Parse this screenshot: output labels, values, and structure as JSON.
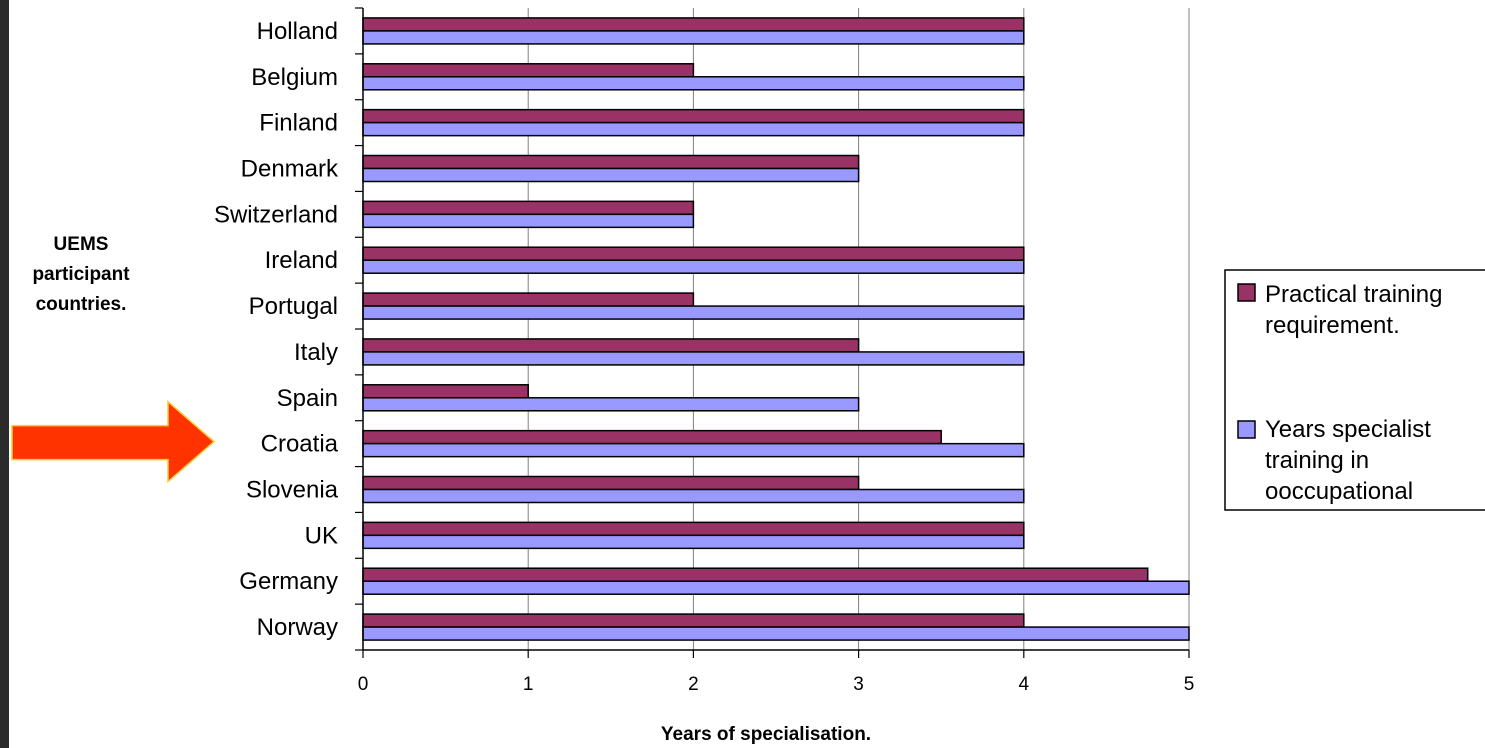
{
  "chart_data": {
    "type": "bar",
    "orientation": "horizontal",
    "categories": [
      "Holland",
      "Belgium",
      "Finland",
      "Denmark",
      "Switzerland",
      "Ireland",
      "Portugal",
      "Italy",
      "Spain",
      "Croatia",
      "Slovenia",
      "UK",
      "Germany",
      "Norway"
    ],
    "series": [
      {
        "name": "Practical training requirement.",
        "color": "#993366",
        "values": [
          4,
          2,
          4,
          3,
          2,
          4,
          2,
          3,
          1,
          3.5,
          3,
          4,
          4.75,
          4
        ]
      },
      {
        "name": "Years specialist training in ooccupational",
        "name_lines": [
          "Years specialist",
          "training in",
          "ooccupational"
        ],
        "color": "#9999ff",
        "values": [
          4,
          4,
          4,
          3,
          2,
          4,
          4,
          4,
          3,
          4,
          4,
          4,
          5,
          5
        ]
      }
    ],
    "legend_lines_practical": [
      "Practical training",
      "requirement."
    ],
    "xlabel": "Years of specialisation.",
    "ylabel_lines": [
      "UEMS",
      "participant",
      "countries."
    ],
    "xticks": [
      "0",
      "1",
      "2",
      "3",
      "4",
      "5"
    ],
    "xlim": [
      0,
      5
    ],
    "grid": "vertical",
    "legend": "right",
    "highlight_arrow": {
      "category": "Croatia",
      "color": "#ff3300"
    }
  }
}
